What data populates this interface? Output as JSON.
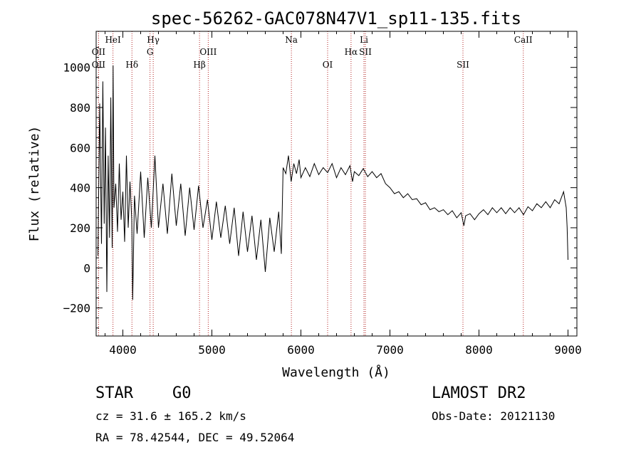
{
  "chart_data": {
    "type": "line",
    "title": "spec-56262-GAC078N47V1_sp11-135.fits",
    "xlabel": "Wavelength (Å)",
    "ylabel": "Flux (relative)",
    "xlim": [
      3700,
      9100
    ],
    "ylim": [
      -340,
      1180
    ],
    "xticks": [
      4000,
      5000,
      6000,
      7000,
      8000,
      9000
    ],
    "yticks": [
      -200,
      0,
      200,
      400,
      600,
      800,
      1000
    ],
    "grid": false,
    "line_color": "#000000",
    "marker_color": "#b22222",
    "spectrum": [
      [
        3720,
        60
      ],
      [
        3740,
        820
      ],
      [
        3760,
        120
      ],
      [
        3775,
        930
      ],
      [
        3790,
        220
      ],
      [
        3805,
        700
      ],
      [
        3820,
        -120
      ],
      [
        3835,
        560
      ],
      [
        3850,
        150
      ],
      [
        3865,
        850
      ],
      [
        3880,
        100
      ],
      [
        3890,
        1010
      ],
      [
        3900,
        300
      ],
      [
        3920,
        420
      ],
      [
        3940,
        180
      ],
      [
        3960,
        520
      ],
      [
        3980,
        240
      ],
      [
        4000,
        380
      ],
      [
        4020,
        130
      ],
      [
        4040,
        560
      ],
      [
        4060,
        200
      ],
      [
        4080,
        430
      ],
      [
        4100,
        240
      ],
      [
        4110,
        -160
      ],
      [
        4130,
        360
      ],
      [
        4160,
        170
      ],
      [
        4200,
        480
      ],
      [
        4240,
        150
      ],
      [
        4280,
        450
      ],
      [
        4320,
        200
      ],
      [
        4360,
        560
      ],
      [
        4400,
        200
      ],
      [
        4450,
        420
      ],
      [
        4500,
        170
      ],
      [
        4550,
        470
      ],
      [
        4600,
        210
      ],
      [
        4650,
        420
      ],
      [
        4700,
        160
      ],
      [
        4750,
        400
      ],
      [
        4800,
        190
      ],
      [
        4850,
        410
      ],
      [
        4900,
        200
      ],
      [
        4950,
        340
      ],
      [
        5000,
        140
      ],
      [
        5050,
        330
      ],
      [
        5100,
        150
      ],
      [
        5150,
        310
      ],
      [
        5200,
        120
      ],
      [
        5250,
        300
      ],
      [
        5300,
        60
      ],
      [
        5350,
        280
      ],
      [
        5400,
        80
      ],
      [
        5450,
        260
      ],
      [
        5500,
        40
      ],
      [
        5550,
        240
      ],
      [
        5600,
        -20
      ],
      [
        5650,
        250
      ],
      [
        5700,
        80
      ],
      [
        5750,
        280
      ],
      [
        5780,
        70
      ],
      [
        5800,
        500
      ],
      [
        5830,
        470
      ],
      [
        5860,
        560
      ],
      [
        5890,
        430
      ],
      [
        5920,
        520
      ],
      [
        5950,
        470
      ],
      [
        5980,
        540
      ],
      [
        6000,
        450
      ],
      [
        6050,
        500
      ],
      [
        6100,
        455
      ],
      [
        6150,
        520
      ],
      [
        6200,
        465
      ],
      [
        6250,
        500
      ],
      [
        6300,
        475
      ],
      [
        6350,
        520
      ],
      [
        6400,
        450
      ],
      [
        6450,
        500
      ],
      [
        6500,
        465
      ],
      [
        6550,
        510
      ],
      [
        6580,
        430
      ],
      [
        6600,
        480
      ],
      [
        6650,
        460
      ],
      [
        6700,
        495
      ],
      [
        6750,
        455
      ],
      [
        6800,
        480
      ],
      [
        6850,
        450
      ],
      [
        6900,
        470
      ],
      [
        6950,
        420
      ],
      [
        7000,
        400
      ],
      [
        7050,
        370
      ],
      [
        7100,
        380
      ],
      [
        7150,
        350
      ],
      [
        7200,
        370
      ],
      [
        7250,
        340
      ],
      [
        7300,
        345
      ],
      [
        7350,
        315
      ],
      [
        7400,
        325
      ],
      [
        7450,
        290
      ],
      [
        7500,
        300
      ],
      [
        7550,
        280
      ],
      [
        7600,
        290
      ],
      [
        7650,
        265
      ],
      [
        7700,
        285
      ],
      [
        7750,
        250
      ],
      [
        7800,
        275
      ],
      [
        7830,
        210
      ],
      [
        7850,
        260
      ],
      [
        7900,
        270
      ],
      [
        7950,
        240
      ],
      [
        8000,
        270
      ],
      [
        8050,
        290
      ],
      [
        8100,
        265
      ],
      [
        8150,
        300
      ],
      [
        8200,
        275
      ],
      [
        8250,
        300
      ],
      [
        8300,
        270
      ],
      [
        8350,
        300
      ],
      [
        8400,
        275
      ],
      [
        8450,
        300
      ],
      [
        8500,
        265
      ],
      [
        8550,
        305
      ],
      [
        8600,
        285
      ],
      [
        8650,
        320
      ],
      [
        8700,
        300
      ],
      [
        8750,
        330
      ],
      [
        8800,
        300
      ],
      [
        8850,
        340
      ],
      [
        8900,
        320
      ],
      [
        8950,
        380
      ],
      [
        8980,
        300
      ],
      [
        8990,
        200
      ],
      [
        9000,
        40
      ]
    ],
    "lines": [
      {
        "label": "OII",
        "wave": 3727,
        "row": 1,
        "top": false
      },
      {
        "label": "OII",
        "wave": 3727,
        "row": 2,
        "top": false
      },
      {
        "label": "HeI",
        "wave": 3889,
        "row": 0,
        "top": true
      },
      {
        "label": "Hδ",
        "wave": 4102,
        "row": 2,
        "top": false
      },
      {
        "label": "Hγ",
        "wave": 4341,
        "row": 0,
        "top": true
      },
      {
        "label": "G",
        "wave": 4305,
        "row": 1,
        "top": false
      },
      {
        "label": "Hβ",
        "wave": 4861,
        "row": 2,
        "top": false
      },
      {
        "label": "OIII",
        "wave": 4959,
        "row": 1,
        "top": false
      },
      {
        "label": "Na",
        "wave": 5893,
        "row": 0,
        "top": true
      },
      {
        "label": "OI",
        "wave": 6300,
        "row": 2,
        "top": false
      },
      {
        "label": "Hα",
        "wave": 6563,
        "row": 1,
        "top": false
      },
      {
        "label": "Li",
        "wave": 6708,
        "row": 0,
        "top": true
      },
      {
        "label": "SII",
        "wave": 6724,
        "row": 1,
        "top": false
      },
      {
        "label": "SII",
        "wave": 7820,
        "row": 2,
        "top": false
      },
      {
        "label": "CaII",
        "wave": 8498,
        "row": 0,
        "top": true
      }
    ]
  },
  "footer": {
    "class_label": "STAR",
    "subclass_label": "G0",
    "redshift_text": "cz = 31.6 ± 165.2 km/s",
    "coords_text": "RA =  78.42544, DEC =  49.52064",
    "survey_label": "LAMOST DR2",
    "obs_date_text": "Obs-Date: 20121130"
  }
}
